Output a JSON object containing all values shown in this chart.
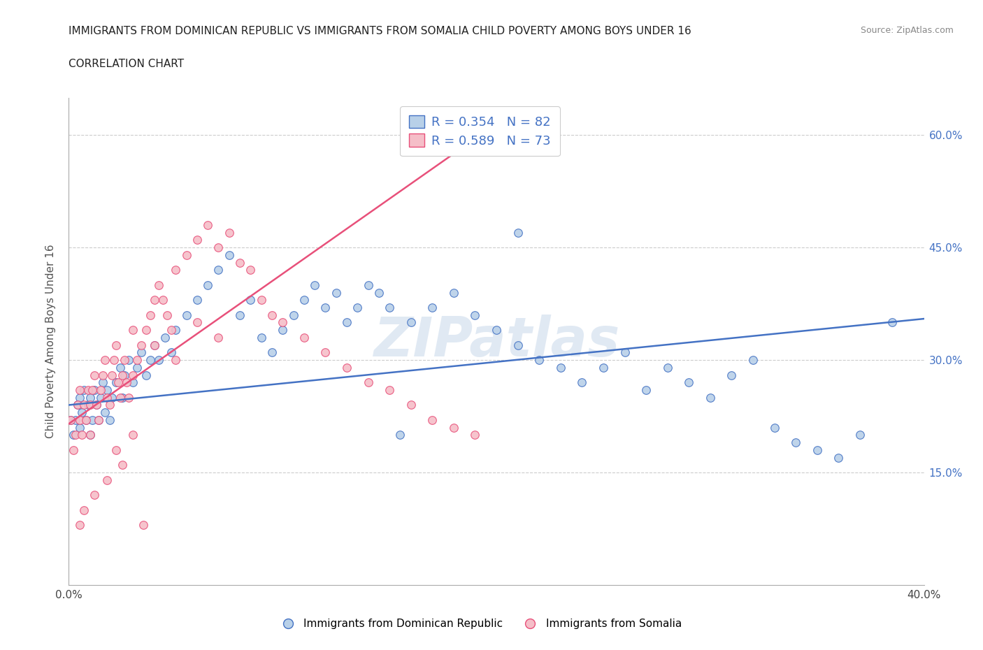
{
  "title": "IMMIGRANTS FROM DOMINICAN REPUBLIC VS IMMIGRANTS FROM SOMALIA CHILD POVERTY AMONG BOYS UNDER 16",
  "subtitle": "CORRELATION CHART",
  "source": "Source: ZipAtlas.com",
  "ylabel": "Child Poverty Among Boys Under 16",
  "xmin": 0.0,
  "xmax": 0.4,
  "ymin": 0.0,
  "ymax": 0.65,
  "yticks": [
    0.15,
    0.3,
    0.45,
    0.6
  ],
  "ytick_labels": [
    "15.0%",
    "30.0%",
    "45.0%",
    "60.0%"
  ],
  "xticks": [
    0.0,
    0.1,
    0.2,
    0.3,
    0.4
  ],
  "xtick_labels": [
    "0.0%",
    "",
    "",
    "",
    "40.0%"
  ],
  "legend_R1": "0.354",
  "legend_N1": "82",
  "legend_R2": "0.589",
  "legend_N2": "73",
  "color_blue": "#b8d0e8",
  "color_pink": "#f5bec8",
  "line_blue": "#4472c4",
  "line_pink": "#e8507a",
  "watermark": "ZIPatlas",
  "blue_line_x0": 0.0,
  "blue_line_y0": 0.24,
  "blue_line_x1": 0.4,
  "blue_line_y1": 0.355,
  "pink_line_x0": 0.0,
  "pink_line_y0": 0.215,
  "pink_line_x1": 0.195,
  "pink_line_y1": 0.605,
  "blue_x": [
    0.001,
    0.002,
    0.003,
    0.004,
    0.005,
    0.005,
    0.006,
    0.007,
    0.008,
    0.009,
    0.01,
    0.01,
    0.011,
    0.012,
    0.013,
    0.014,
    0.015,
    0.016,
    0.017,
    0.018,
    0.019,
    0.02,
    0.022,
    0.024,
    0.025,
    0.026,
    0.028,
    0.03,
    0.032,
    0.034,
    0.036,
    0.038,
    0.04,
    0.042,
    0.045,
    0.048,
    0.05,
    0.055,
    0.06,
    0.065,
    0.07,
    0.075,
    0.08,
    0.085,
    0.09,
    0.095,
    0.1,
    0.105,
    0.11,
    0.115,
    0.12,
    0.125,
    0.13,
    0.135,
    0.14,
    0.145,
    0.15,
    0.16,
    0.17,
    0.18,
    0.19,
    0.2,
    0.21,
    0.22,
    0.23,
    0.24,
    0.25,
    0.26,
    0.27,
    0.28,
    0.29,
    0.3,
    0.31,
    0.32,
    0.33,
    0.34,
    0.35,
    0.36,
    0.37,
    0.385,
    0.21,
    0.155
  ],
  "blue_y": [
    0.22,
    0.2,
    0.22,
    0.24,
    0.21,
    0.25,
    0.23,
    0.26,
    0.22,
    0.24,
    0.2,
    0.25,
    0.22,
    0.26,
    0.24,
    0.22,
    0.25,
    0.27,
    0.23,
    0.26,
    0.22,
    0.25,
    0.27,
    0.29,
    0.25,
    0.28,
    0.3,
    0.27,
    0.29,
    0.31,
    0.28,
    0.3,
    0.32,
    0.3,
    0.33,
    0.31,
    0.34,
    0.36,
    0.38,
    0.4,
    0.42,
    0.44,
    0.36,
    0.38,
    0.33,
    0.31,
    0.34,
    0.36,
    0.38,
    0.4,
    0.37,
    0.39,
    0.35,
    0.37,
    0.4,
    0.39,
    0.37,
    0.35,
    0.37,
    0.39,
    0.36,
    0.34,
    0.32,
    0.3,
    0.29,
    0.27,
    0.29,
    0.31,
    0.26,
    0.29,
    0.27,
    0.25,
    0.28,
    0.3,
    0.21,
    0.19,
    0.18,
    0.17,
    0.2,
    0.35,
    0.47,
    0.2
  ],
  "pink_x": [
    0.001,
    0.002,
    0.003,
    0.004,
    0.005,
    0.005,
    0.006,
    0.007,
    0.008,
    0.009,
    0.01,
    0.01,
    0.011,
    0.012,
    0.013,
    0.014,
    0.015,
    0.016,
    0.017,
    0.018,
    0.019,
    0.02,
    0.021,
    0.022,
    0.023,
    0.024,
    0.025,
    0.026,
    0.027,
    0.028,
    0.03,
    0.032,
    0.034,
    0.036,
    0.038,
    0.04,
    0.042,
    0.044,
    0.046,
    0.048,
    0.05,
    0.055,
    0.06,
    0.065,
    0.07,
    0.075,
    0.08,
    0.085,
    0.09,
    0.095,
    0.1,
    0.11,
    0.12,
    0.13,
    0.14,
    0.15,
    0.16,
    0.17,
    0.18,
    0.19,
    0.03,
    0.04,
    0.05,
    0.06,
    0.07,
    0.005,
    0.007,
    0.012,
    0.018,
    0.022,
    0.025,
    0.03,
    0.035
  ],
  "pink_y": [
    0.22,
    0.18,
    0.2,
    0.24,
    0.22,
    0.26,
    0.2,
    0.24,
    0.22,
    0.26,
    0.2,
    0.24,
    0.26,
    0.28,
    0.24,
    0.22,
    0.26,
    0.28,
    0.3,
    0.25,
    0.24,
    0.28,
    0.3,
    0.32,
    0.27,
    0.25,
    0.28,
    0.3,
    0.27,
    0.25,
    0.28,
    0.3,
    0.32,
    0.34,
    0.36,
    0.38,
    0.4,
    0.38,
    0.36,
    0.34,
    0.42,
    0.44,
    0.46,
    0.48,
    0.45,
    0.47,
    0.43,
    0.42,
    0.38,
    0.36,
    0.35,
    0.33,
    0.31,
    0.29,
    0.27,
    0.26,
    0.24,
    0.22,
    0.21,
    0.2,
    0.34,
    0.32,
    0.3,
    0.35,
    0.33,
    0.08,
    0.1,
    0.12,
    0.14,
    0.18,
    0.16,
    0.2,
    0.08
  ]
}
